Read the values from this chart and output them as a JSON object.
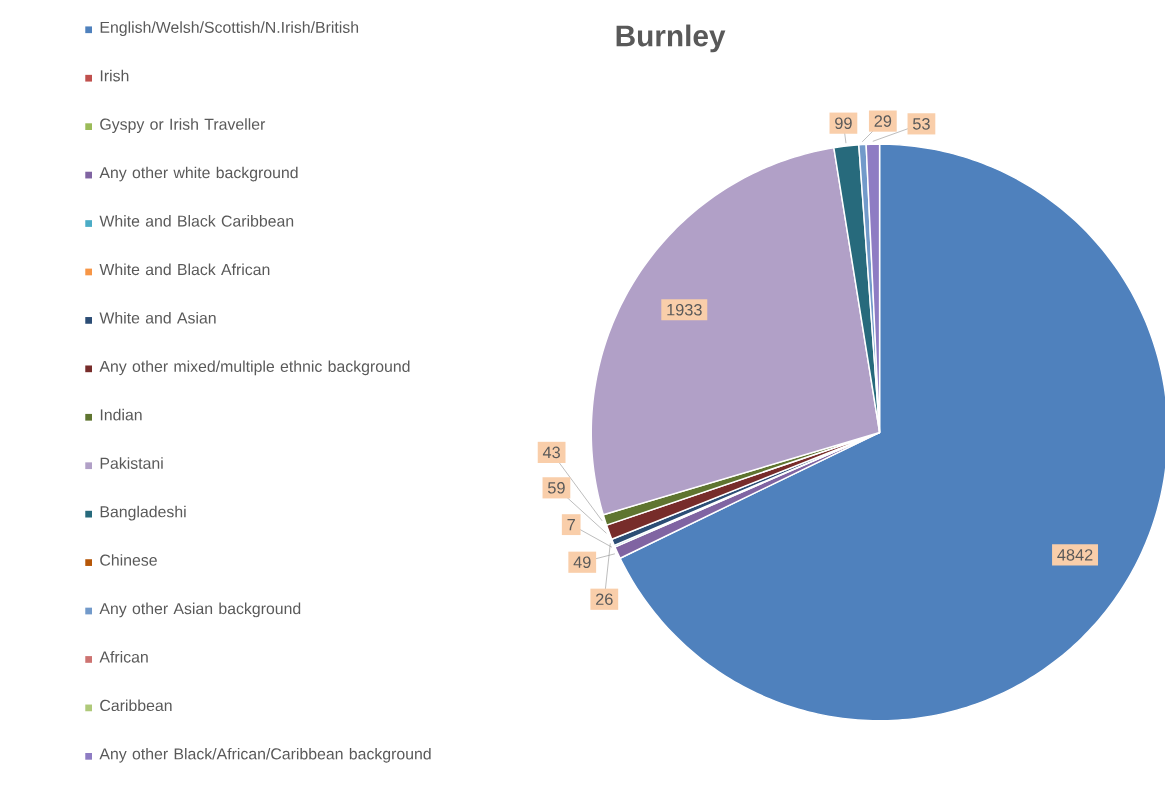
{
  "chart_data": {
    "type": "pie",
    "title": "Burnley",
    "legend": "left",
    "categories": [
      "English/Welsh/Scottish/N.Irish/British",
      "Irish",
      "Gyspy or Irish Traveller",
      "Any other white background",
      "White and Black Caribbean",
      "White and Black African",
      "White and Asian",
      "Any other mixed/multiple ethnic background",
      "Indian",
      "Pakistani",
      "Bangladeshi",
      "Chinese",
      "Any other Asian background",
      "African",
      "Caribbean",
      "Any other Black/African/Caribbean background"
    ],
    "values": [
      4842,
      0,
      0,
      49,
      7,
      0,
      26,
      59,
      43,
      1933,
      99,
      0,
      29,
      0,
      0,
      53
    ],
    "value_labels": [
      "4842",
      null,
      null,
      "49",
      "7",
      null,
      "26",
      "59",
      "43",
      "1933",
      "99",
      null,
      "29",
      null,
      null,
      "53"
    ],
    "colors": [
      "#4f81bd",
      "#c0504d",
      "#9bbb59",
      "#8064a2",
      "#4bacc6",
      "#f79646",
      "#2c4d75",
      "#772c2a",
      "#5f7530",
      "#b1a0c7",
      "#276a7c",
      "#b65708",
      "#729aca",
      "#cd7371",
      "#afc97a",
      "#8e7cc3"
    ]
  }
}
